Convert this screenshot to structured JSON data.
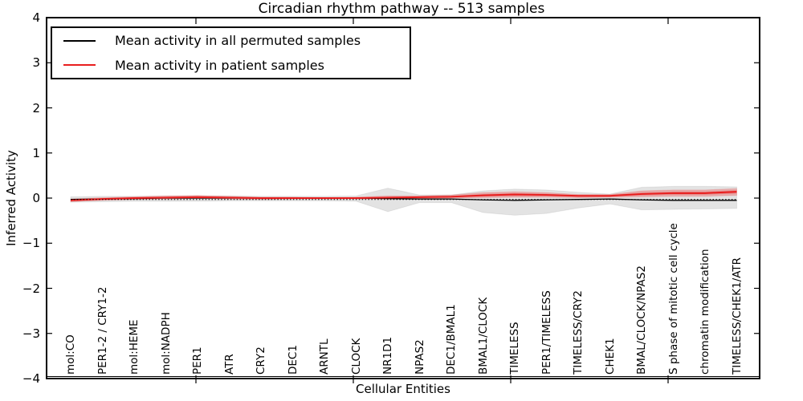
{
  "title": "Circadian rhythm pathway -- 513 samples",
  "legend": {
    "items": [
      {
        "label": "Mean activity in all permuted samples",
        "color": "#000000"
      },
      {
        "label": "Mean activity in patient samples",
        "color": "#e81e1e"
      }
    ],
    "position": "upper left"
  },
  "y_axis": {
    "label": "Inferred Activity",
    "ticks": [
      {
        "label": "4",
        "value": 4
      },
      {
        "label": "3",
        "value": 3
      },
      {
        "label": "2",
        "value": 2
      },
      {
        "label": "1",
        "value": 1
      },
      {
        "label": "0",
        "value": 0
      },
      {
        "label": "−1",
        "value": -1
      },
      {
        "label": "−2",
        "value": -2
      },
      {
        "label": "−3",
        "value": -3
      },
      {
        "label": "−4",
        "value": -4
      }
    ]
  },
  "x_axis": {
    "label": "Cellular Entities"
  },
  "chart_data": {
    "type": "line",
    "title": "Circadian rhythm pathway -- 513 samples",
    "xlabel": "Cellular Entities",
    "ylabel": "Inferred Activity",
    "ylim": [
      -4,
      4
    ],
    "grid": false,
    "legend_position": "upper left",
    "categories": [
      "mol:CO",
      "PER1-2 / CRY1-2",
      "mol:HEME",
      "mol:NADPH",
      "PER1",
      "ATR",
      "CRY2",
      "DEC1",
      "ARNTL",
      "CLOCK",
      "NR1D1",
      "NPAS2",
      "DEC1/BMAL1",
      "BMAL1/CLOCK",
      "TIMELESS",
      "PER1/TIMELESS",
      "TIMELESS/CRY2",
      "CHEK1",
      "BMAL/CLOCK/NPAS2",
      "S phase of mitotic cell cycle",
      "chromatin modification",
      "TIMELESS/CHEK1/ATR"
    ],
    "series": [
      {
        "name": "Mean activity in all permuted samples",
        "color": "#000000",
        "line_style": "solid",
        "width": 1.3,
        "values": [
          -0.03,
          -0.02,
          -0.01,
          0,
          0,
          0,
          0,
          0,
          0,
          0,
          -0.01,
          -0.02,
          -0.02,
          -0.04,
          -0.05,
          -0.04,
          -0.03,
          -0.02,
          -0.04,
          -0.05,
          -0.05,
          -0.05
        ]
      },
      {
        "name": "Mean activity in patient samples",
        "color": "#e81e1e",
        "line_style": "solid",
        "width": 2,
        "values": [
          -0.05,
          -0.02,
          0,
          0.01,
          0.02,
          0.01,
          0,
          0,
          0,
          0,
          0.01,
          0.02,
          0.03,
          0.06,
          0.08,
          0.07,
          0.05,
          0.05,
          0.09,
          0.11,
          0.11,
          0.14
        ]
      },
      {
        "name": "Zero baseline",
        "color": "#000000",
        "line_style": "dotted",
        "width": 1,
        "values": [
          -0.03,
          -0.03,
          -0.03,
          -0.03,
          -0.03,
          -0.03,
          -0.03,
          -0.03,
          -0.03,
          -0.03,
          -0.03,
          -0.03,
          -0.03,
          -0.03,
          -0.03,
          -0.03,
          -0.03,
          -0.03,
          -0.03,
          -0.03,
          -0.03,
          -0.03
        ]
      }
    ],
    "bands": [
      {
        "name": "Permuted samples range",
        "color": "rgba(0,0,0,0.11)",
        "edge_color": "rgba(0,0,0,0.07)",
        "upper": [
          0.03,
          0.04,
          0.04,
          0.05,
          0.05,
          0.05,
          0.04,
          0.04,
          0.04,
          0.05,
          0.22,
          0.07,
          0.07,
          0.16,
          0.2,
          0.18,
          0.13,
          0.09,
          0.24,
          0.26,
          0.26,
          0.25
        ],
        "lower": [
          -0.09,
          -0.08,
          -0.07,
          -0.07,
          -0.07,
          -0.06,
          -0.06,
          -0.06,
          -0.06,
          -0.07,
          -0.3,
          -0.1,
          -0.1,
          -0.32,
          -0.38,
          -0.34,
          -0.22,
          -0.13,
          -0.26,
          -0.25,
          -0.24,
          -0.23
        ]
      },
      {
        "name": "Patient samples range",
        "color": "rgba(235,30,30,0.27)",
        "edge_color": "rgba(235,30,30,0.15)",
        "upper": [
          -0.02,
          0.01,
          0.03,
          0.05,
          0.06,
          0.04,
          0.02,
          0.02,
          0.01,
          0.02,
          0.05,
          0.05,
          0.07,
          0.12,
          0.14,
          0.12,
          0.08,
          0.08,
          0.16,
          0.18,
          0.18,
          0.21
        ],
        "lower": [
          -0.08,
          -0.05,
          -0.03,
          -0.02,
          -0.01,
          -0.02,
          -0.03,
          -0.02,
          -0.02,
          -0.02,
          -0.02,
          -0.01,
          0,
          0.01,
          0.02,
          0.02,
          0.01,
          0.02,
          0.03,
          0.04,
          0.04,
          0.06
        ]
      }
    ]
  }
}
